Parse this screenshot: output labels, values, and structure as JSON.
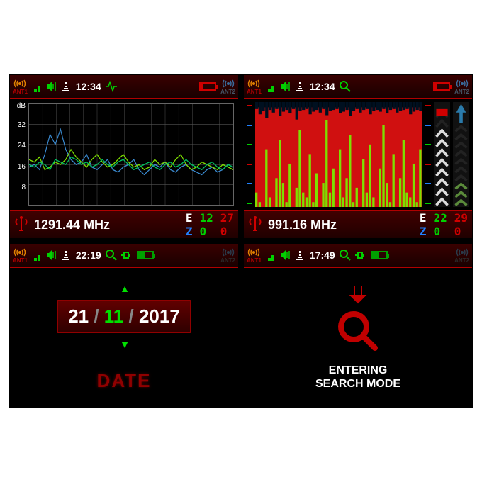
{
  "panel1": {
    "status": {
      "ant1": "ANT1",
      "ant2": "ANT2",
      "time": "12:34"
    },
    "chart": {
      "type": "line",
      "ylabel": "dB",
      "yticks": [
        8,
        16,
        24,
        32
      ],
      "ylim": [
        0,
        40
      ],
      "grid_color": "#555555",
      "background_color": "#000000",
      "series": [
        {
          "color": "#3a8ad0",
          "width": 1.2,
          "y": [
            15,
            16,
            14,
            20,
            28,
            24,
            30,
            22,
            18,
            16,
            17,
            20,
            15,
            14,
            16,
            18,
            14,
            13,
            15,
            16,
            18,
            14,
            12,
            14,
            16,
            15,
            17,
            14,
            13,
            15,
            16,
            14,
            13,
            12,
            14,
            15,
            13,
            14,
            16,
            15
          ]
        },
        {
          "color": "#7de000",
          "width": 1.2,
          "y": [
            18,
            17,
            19,
            14,
            15,
            17,
            16,
            18,
            22,
            19,
            17,
            15,
            18,
            20,
            17,
            15,
            16,
            18,
            20,
            17,
            15,
            16,
            14,
            15,
            18,
            16,
            17,
            15,
            18,
            20,
            16,
            14,
            15,
            17,
            16,
            15,
            14,
            16,
            15,
            14
          ]
        },
        {
          "color": "#00c060",
          "width": 1.2,
          "y": [
            16,
            15,
            17,
            16,
            14,
            18,
            17,
            16,
            19,
            18,
            16,
            17,
            15,
            16,
            18,
            16,
            15,
            17,
            18,
            16,
            14,
            15,
            16,
            17,
            15,
            14,
            16,
            17,
            15,
            16,
            18,
            16,
            15,
            14,
            16,
            17,
            15,
            14,
            16,
            15
          ]
        }
      ],
      "x_grid_divisions": 15,
      "y_grid_divisions": 5
    },
    "freq": {
      "value": "1291.44 MHz",
      "E_g": "12",
      "E_r": "27",
      "Z_g": "0",
      "Z_r": "0"
    }
  },
  "panel2": {
    "status": {
      "ant1": "ANT1",
      "ant2": "ANT2",
      "time": "12:34"
    },
    "spectrum": {
      "type": "spectrum",
      "background_fill": "#d01010",
      "bar_color": "#7de000",
      "top_spikes_color": "#001020",
      "top_spikes": [
        2,
        8,
        4,
        12,
        3,
        6,
        2,
        10,
        5,
        3,
        7,
        2,
        14,
        4,
        3,
        2,
        8,
        5,
        3,
        6,
        2,
        9,
        4,
        3,
        2,
        7,
        5,
        3,
        10,
        4,
        2,
        6,
        3,
        2,
        8,
        4,
        3,
        5,
        2,
        7,
        3,
        2,
        6,
        4,
        3,
        2,
        8,
        5,
        3,
        4
      ],
      "bars": [
        15,
        5,
        0,
        60,
        10,
        0,
        30,
        70,
        25,
        5,
        45,
        0,
        20,
        80,
        15,
        10,
        55,
        5,
        35,
        0,
        25,
        90,
        15,
        40,
        0,
        60,
        10,
        30,
        75,
        5,
        20,
        0,
        50,
        15,
        65,
        10,
        0,
        40,
        85,
        25,
        5,
        55,
        0,
        30,
        70,
        15,
        10,
        45,
        5,
        60
      ],
      "height_scale": 100
    },
    "tick_colors": [
      "#d00000",
      "#2080ff",
      "#00d000",
      "#d00000",
      "#2080ff",
      "#00d000"
    ],
    "meters": {
      "left": {
        "fill": 0.75,
        "chev_color": "#dddddd",
        "tip_fill": "#d00000"
      },
      "right": {
        "fill": 0.3,
        "chev_color": "#5a8a3a",
        "arrow_color": "#2a7aaa"
      }
    },
    "freq": {
      "value": "991.16 MHz",
      "E_g": "22",
      "E_r": "29",
      "Z_g": "0",
      "Z_r": "0"
    }
  },
  "panel3": {
    "status": {
      "ant1": "ANT1",
      "ant2": "ANT2",
      "time": "22:19"
    },
    "date": {
      "day": "21",
      "month": "11",
      "year": "2017",
      "selected": "month",
      "label": "DATE"
    }
  },
  "panel4": {
    "status": {
      "ant1": "ANT1",
      "ant2": "ANT2",
      "time": "17:49"
    },
    "message_l1": "ENTERING",
    "message_l2": "SEARCH MODE",
    "icon_color": "#c00000"
  },
  "colors": {
    "screen_bg": "#000000",
    "bar_bg_grad_top": "#3a0000",
    "bar_bg_grad_bot": "#1a0000",
    "accent_red": "#b00000",
    "accent_green": "#00d000",
    "accent_blue": "#2080ff",
    "text": "#ffffff"
  }
}
